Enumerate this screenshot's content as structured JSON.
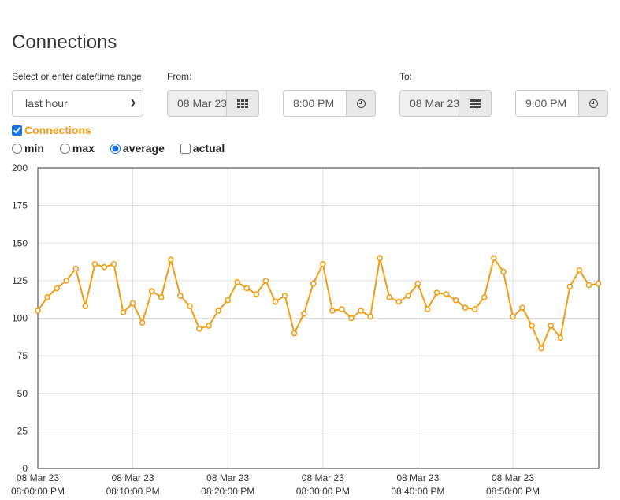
{
  "page": {
    "title": "Connections"
  },
  "range": {
    "label": "Select or enter date/time range",
    "selected": "last hour"
  },
  "from": {
    "label": "From:",
    "date": "08 Mar 23",
    "time": "8:00 PM"
  },
  "to": {
    "label": "To:",
    "date": "08 Mar 23",
    "time": "9:00 PM"
  },
  "icons": {
    "calendar": "calendar-grid-icon",
    "clock": "clock-icon"
  },
  "series_toggle": {
    "label": "Connections",
    "checked": true,
    "color": "#f39c12"
  },
  "stat_options": [
    {
      "label": "min",
      "type": "radio",
      "checked": false
    },
    {
      "label": "max",
      "type": "radio",
      "checked": false
    },
    {
      "label": "average",
      "type": "radio",
      "checked": true
    },
    {
      "label": "actual",
      "type": "checkbox",
      "checked": false
    }
  ],
  "chart_data": {
    "type": "line",
    "title": "",
    "xlabel": "",
    "ylabel": "",
    "ylim": [
      0,
      200
    ],
    "xlim": [
      "08 Mar 23 08:00:00 PM",
      "08 Mar 23 08:59:00 PM"
    ],
    "y_ticks": [
      0,
      25,
      50,
      75,
      100,
      125,
      150,
      175,
      200
    ],
    "x_ticks": [
      {
        "date": "08 Mar 23",
        "time": "08:00:00 PM"
      },
      {
        "date": "08 Mar 23",
        "time": "08:10:00 PM"
      },
      {
        "date": "08 Mar 23",
        "time": "08:20:00 PM"
      },
      {
        "date": "08 Mar 23",
        "time": "08:30:00 PM"
      },
      {
        "date": "08 Mar 23",
        "time": "08:40:00 PM"
      },
      {
        "date": "08 Mar 23",
        "time": "08:50:00 PM"
      }
    ],
    "grid": true,
    "color": "#f39c12",
    "series": [
      {
        "name": "Connections",
        "x": [
          "08:00 PM",
          "08:01 PM",
          "08:02 PM",
          "08:03 PM",
          "08:04 PM",
          "08:05 PM",
          "08:06 PM",
          "08:07 PM",
          "08:08 PM",
          "08:09 PM",
          "08:10 PM",
          "08:11 PM",
          "08:12 PM",
          "08:13 PM",
          "08:14 PM",
          "08:15 PM",
          "08:16 PM",
          "08:17 PM",
          "08:18 PM",
          "08:19 PM",
          "08:20 PM",
          "08:21 PM",
          "08:22 PM",
          "08:23 PM",
          "08:24 PM",
          "08:25 PM",
          "08:26 PM",
          "08:27 PM",
          "08:28 PM",
          "08:29 PM",
          "08:30 PM",
          "08:31 PM",
          "08:32 PM",
          "08:33 PM",
          "08:34 PM",
          "08:35 PM",
          "08:36 PM",
          "08:37 PM",
          "08:38 PM",
          "08:39 PM",
          "08:40 PM",
          "08:41 PM",
          "08:42 PM",
          "08:43 PM",
          "08:44 PM",
          "08:45 PM",
          "08:46 PM",
          "08:47 PM",
          "08:48 PM",
          "08:49 PM",
          "08:50 PM",
          "08:51 PM",
          "08:52 PM",
          "08:53 PM",
          "08:54 PM",
          "08:55 PM",
          "08:56 PM",
          "08:57 PM",
          "08:58 PM",
          "08:59 PM"
        ],
        "values": [
          105,
          114,
          120,
          125,
          133,
          108,
          136,
          134,
          136,
          104,
          110,
          97,
          118,
          114,
          139,
          115,
          108,
          93,
          95,
          105,
          112,
          124,
          120,
          116,
          125,
          111,
          115,
          90,
          103,
          123,
          136,
          105,
          106,
          100,
          105,
          101,
          140,
          114,
          111,
          115,
          123,
          106,
          117,
          116,
          112,
          107,
          106,
          114,
          140,
          131,
          101,
          107,
          95,
          80,
          95,
          87,
          121,
          132,
          122,
          123
        ]
      }
    ]
  }
}
